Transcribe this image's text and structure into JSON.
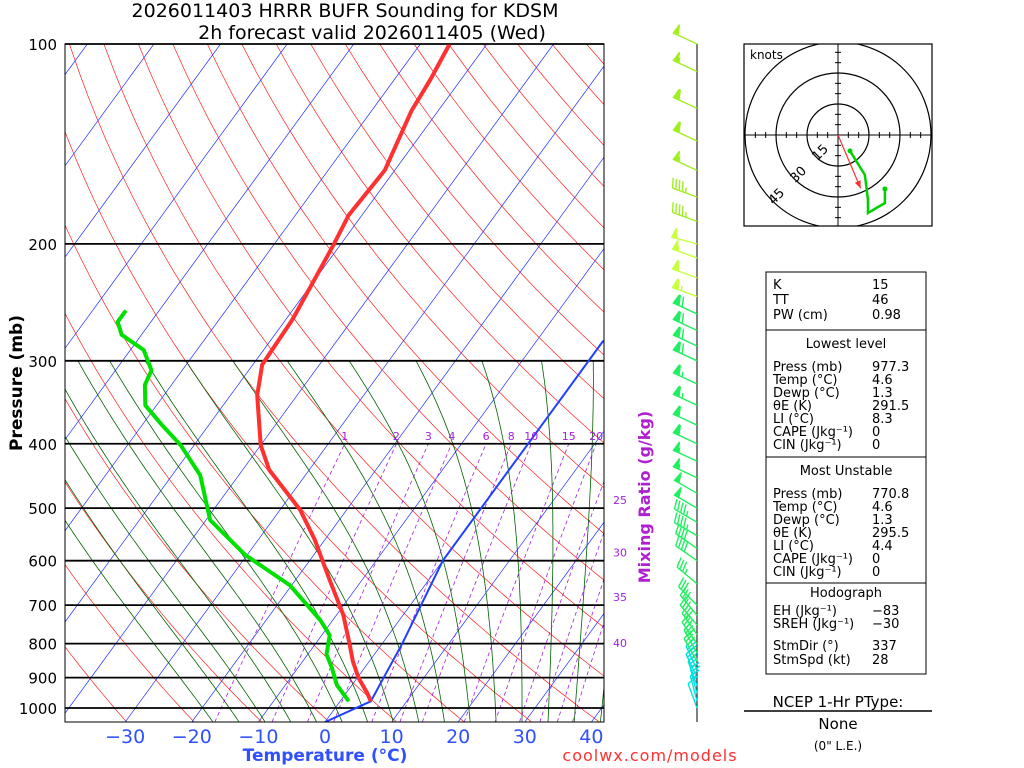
{
  "chart_data": {
    "type": "line",
    "subtype": "skew-T log-P sounding",
    "title": [
      "2026011403 HRRR BUFR Sounding for KDSM",
      "2h forecast valid 2026011405 (Wed)"
    ],
    "xlabel": "Temperature (°C)",
    "ylabel": "Pressure (mb)",
    "mixing_ratio_label": "Mixing Ratio (g/kg)",
    "credit": "coolwx.com/models",
    "xticks": [
      -30,
      -20,
      -10,
      0,
      10,
      20,
      30,
      40
    ],
    "xtick_labels": [
      "−30",
      "−20",
      "−10",
      "0",
      "10",
      "20",
      "30",
      "40"
    ],
    "yticks": [
      100,
      200,
      300,
      400,
      500,
      600,
      700,
      800,
      900,
      1000
    ],
    "ytick_labels": [
      "100",
      "200",
      "300",
      "400",
      "500",
      "600",
      "700",
      "800",
      "900",
      "1000"
    ],
    "xlim": [
      -40,
      45
    ],
    "ylim": [
      1050,
      100
    ],
    "mixing_ratio_lines": [
      1,
      2,
      3,
      4,
      6,
      8,
      10,
      15,
      20,
      25,
      30,
      35,
      40
    ],
    "mixing_ratio_labels": [
      "1",
      "2",
      "3",
      "4",
      "6",
      "8",
      "10",
      "15",
      "20",
      "25",
      "30",
      "35",
      "40"
    ],
    "series": [
      {
        "name": "Temperature",
        "color": "#ff3030",
        "points": [
          [
            977,
            4.6
          ],
          [
            950,
            3.2
          ],
          [
            901,
            0.2
          ],
          [
            850,
            -2.5
          ],
          [
            804,
            -4.7
          ],
          [
            724,
            -9
          ],
          [
            641,
            -14.9
          ],
          [
            558,
            -21.5
          ],
          [
            503,
            -27
          ],
          [
            438,
            -36
          ],
          [
            402,
            -40
          ],
          [
            338,
            -46
          ],
          [
            304,
            -48.6
          ],
          [
            260,
            -49
          ],
          [
            201,
            -51
          ],
          [
            181,
            -52
          ],
          [
            155,
            -51.5
          ],
          [
            126,
            -54
          ],
          [
            113,
            -54.6
          ],
          [
            100,
            -55.6
          ]
        ]
      },
      {
        "name": "Dewpoint",
        "color": "#00e000",
        "points": [
          [
            977,
            1.3
          ],
          [
            923,
            -2.3
          ],
          [
            870,
            -4.9
          ],
          [
            830,
            -7.2
          ],
          [
            777,
            -8.8
          ],
          [
            737,
            -11.9
          ],
          [
            653,
            -20.3
          ],
          [
            588,
            -30.3
          ],
          [
            521,
            -39.4
          ],
          [
            446,
            -45.8
          ],
          [
            402,
            -52
          ],
          [
            375,
            -57
          ],
          [
            350,
            -61.7
          ],
          [
            326,
            -64
          ],
          [
            310,
            -64.6
          ],
          [
            289,
            -68
          ],
          [
            274,
            -73
          ],
          [
            262,
            -75
          ],
          [
            252,
            -75
          ]
        ]
      },
      {
        "name": "Lifted parcel",
        "color": "#2040ff",
        "points": [
          [
            1050,
            0
          ],
          [
            977,
            4.6
          ],
          [
            800,
            3.0
          ],
          [
            600,
            0
          ],
          [
            400,
            0
          ],
          [
            280,
            0
          ]
        ]
      }
    ],
    "wind_barbs": [
      [
        1000,
        340,
        10
      ],
      [
        975,
        345,
        15
      ],
      [
        950,
        345,
        20
      ],
      [
        925,
        340,
        25
      ],
      [
        900,
        335,
        30
      ],
      [
        875,
        335,
        30
      ],
      [
        850,
        330,
        30
      ],
      [
        825,
        330,
        30
      ],
      [
        800,
        325,
        30
      ],
      [
        775,
        325,
        30
      ],
      [
        750,
        320,
        30
      ],
      [
        725,
        320,
        30
      ],
      [
        700,
        315,
        30
      ],
      [
        650,
        310,
        35
      ],
      [
        600,
        305,
        40
      ],
      [
        575,
        305,
        40
      ],
      [
        550,
        300,
        45
      ],
      [
        525,
        300,
        45
      ],
      [
        500,
        300,
        50
      ],
      [
        475,
        300,
        50
      ],
      [
        450,
        295,
        55
      ],
      [
        425,
        295,
        55
      ],
      [
        400,
        295,
        60
      ],
      [
        375,
        295,
        60
      ],
      [
        350,
        295,
        65
      ],
      [
        325,
        295,
        65
      ],
      [
        300,
        295,
        70
      ],
      [
        285,
        295,
        70
      ],
      [
        270,
        295,
        70
      ],
      [
        255,
        295,
        70
      ],
      [
        240,
        290,
        65
      ],
      [
        225,
        290,
        60
      ],
      [
        210,
        290,
        55
      ],
      [
        200,
        285,
        50
      ],
      [
        185,
        290,
        45
      ],
      [
        170,
        290,
        45
      ],
      [
        155,
        295,
        55
      ],
      [
        140,
        295,
        60
      ],
      [
        125,
        295,
        60
      ],
      [
        110,
        295,
        55
      ],
      [
        100,
        295,
        50
      ]
    ],
    "hodograph": {
      "label": "knots",
      "rings": [
        15,
        30,
        45
      ],
      "ring_labels": [
        "15",
        "30",
        "45"
      ],
      "wind_uv": [
        [
          5.8,
          -7.7
        ],
        [
          13,
          -19.3
        ],
        [
          14.5,
          -31.4
        ],
        [
          14.5,
          -37.7
        ],
        [
          22.7,
          -32.9
        ],
        [
          22.7,
          -26.1
        ]
      ],
      "storm_motion": {
        "dir": 337,
        "spd": 28
      }
    }
  },
  "indices": {
    "top": [
      {
        "label": "K",
        "value": "15"
      },
      {
        "label": "TT",
        "value": "46"
      },
      {
        "label": "PW (cm)",
        "value": "0.98"
      }
    ],
    "lowest": {
      "header": "Lowest level",
      "rows": [
        {
          "label": "Press (mb)",
          "value": "977.3"
        },
        {
          "label": "Temp (°C)",
          "value": "4.6"
        },
        {
          "label": "Dewp (°C)",
          "value": "1.3"
        },
        {
          "label": "θE (K)",
          "value": "291.5"
        },
        {
          "label": "LI (°C)",
          "value": "8.3"
        },
        {
          "label": "CAPE (Jkg⁻¹)",
          "value": "0"
        },
        {
          "label": "CIN (Jkg⁻¹)",
          "value": "0"
        }
      ]
    },
    "unstable": {
      "header": "Most Unstable",
      "rows": [
        {
          "label": "Press (mb)",
          "value": "770.8"
        },
        {
          "label": "Temp (°C)",
          "value": "4.6"
        },
        {
          "label": "Dewp (°C)",
          "value": "1.3"
        },
        {
          "label": "θE (K)",
          "value": "295.5"
        },
        {
          "label": "LI (°C)",
          "value": "4.4"
        },
        {
          "label": "CAPE (Jkg⁻¹)",
          "value": "0"
        },
        {
          "label": "CIN (Jkg⁻¹)",
          "value": "0"
        }
      ]
    },
    "hodo": {
      "header": "Hodograph",
      "rows": [
        {
          "label": "EH (Jkg⁻¹)",
          "value": "−83"
        },
        {
          "label": "SREH (Jkg⁻¹)",
          "value": "−30"
        },
        {
          "label": "StmDir (°)",
          "value": "337"
        },
        {
          "label": "StmSpd (kt)",
          "value": "28"
        }
      ]
    }
  },
  "ptype": {
    "header": "NCEP 1-Hr PType:",
    "value": "None",
    "note": "(0\" L.E.)"
  }
}
